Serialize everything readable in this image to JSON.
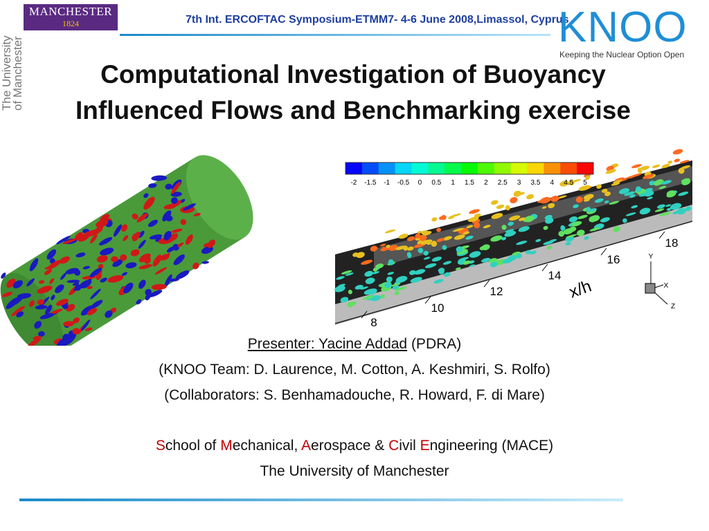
{
  "header": {
    "logo_name": "MANCHESTER",
    "logo_year": "1824",
    "university_vertical": "The University of Manchester",
    "conference": "7th Int. ERCOFTAC Symposium-ETMM7- 4-6 June 2008,Limassol, Cyprus",
    "knoo": "KNOO",
    "knoo_tagline": "Keeping the Nuclear Option Open"
  },
  "title": "Computational Investigation of Buoyancy Influenced Flows and Benchmarking exercise",
  "figure": {
    "colorbar_labels": [
      "-2",
      "-1.5",
      "-1",
      "-0.5",
      "0",
      "0.5",
      "1",
      "1.5",
      "2",
      "2.5",
      "3",
      "3.5",
      "4",
      "4.5",
      "5"
    ],
    "axis_labels": [
      "8",
      "10",
      "12",
      "14",
      "16",
      "18"
    ],
    "axis_title": "x/h",
    "triad": [
      "Y",
      "X",
      "Z"
    ]
  },
  "presenter": {
    "name": "Presenter: Yacine Addad",
    "role": " (PDRA)"
  },
  "team": "(KNOO Team: D. Laurence, M. Cotton, A. Keshmiri, S. Rolfo)",
  "collaborators": "(Collaborators: S. Benhamadouche, R. Howard, F. di Mare)",
  "school": {
    "parts": [
      {
        "text": "S",
        "accent": true
      },
      {
        "text": "chool of ",
        "accent": false
      },
      {
        "text": "M",
        "accent": true
      },
      {
        "text": "echanical, ",
        "accent": false
      },
      {
        "text": "A",
        "accent": true
      },
      {
        "text": "erospace & ",
        "accent": false
      },
      {
        "text": "C",
        "accent": true
      },
      {
        "text": "ivil ",
        "accent": false
      },
      {
        "text": "E",
        "accent": true
      },
      {
        "text": "ngineering (MACE)",
        "accent": false
      }
    ]
  },
  "university": "The University of Manchester"
}
